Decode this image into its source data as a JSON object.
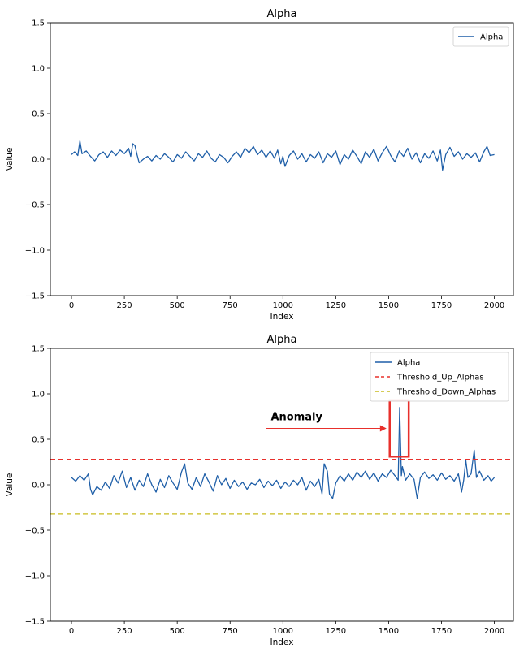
{
  "chart_data": [
    {
      "type": "line",
      "title": "Alpha",
      "xlabel": "Index",
      "ylabel": "Value",
      "xlim": [
        -100,
        2090
      ],
      "ylim": [
        -1.5,
        1.5
      ],
      "xticks": [
        0,
        250,
        500,
        750,
        1000,
        1250,
        1500,
        1750,
        2000
      ],
      "yticks": [
        -1.5,
        -1.0,
        -0.5,
        0.0,
        0.5,
        1.0,
        1.5
      ],
      "legend_position": "upper right",
      "series": [
        {
          "name": "Alpha",
          "kind": "line",
          "color": "#1f5fa8",
          "points": [
            [
              0,
              0.05
            ],
            [
              15,
              0.08
            ],
            [
              30,
              0.04
            ],
            [
              40,
              0.2
            ],
            [
              50,
              0.06
            ],
            [
              70,
              0.09
            ],
            [
              90,
              0.03
            ],
            [
              110,
              -0.02
            ],
            [
              130,
              0.05
            ],
            [
              150,
              0.08
            ],
            [
              170,
              0.02
            ],
            [
              190,
              0.09
            ],
            [
              210,
              0.04
            ],
            [
              230,
              0.1
            ],
            [
              250,
              0.06
            ],
            [
              270,
              0.12
            ],
            [
              280,
              0.03
            ],
            [
              290,
              0.17
            ],
            [
              300,
              0.15
            ],
            [
              310,
              0.05
            ],
            [
              320,
              -0.04
            ],
            [
              340,
              0.0
            ],
            [
              360,
              0.03
            ],
            [
              380,
              -0.02
            ],
            [
              400,
              0.04
            ],
            [
              420,
              0.0
            ],
            [
              440,
              0.06
            ],
            [
              460,
              0.02
            ],
            [
              480,
              -0.03
            ],
            [
              500,
              0.05
            ],
            [
              520,
              0.01
            ],
            [
              540,
              0.08
            ],
            [
              560,
              0.03
            ],
            [
              580,
              -0.02
            ],
            [
              600,
              0.06
            ],
            [
              620,
              0.02
            ],
            [
              640,
              0.09
            ],
            [
              660,
              0.01
            ],
            [
              680,
              -0.03
            ],
            [
              700,
              0.05
            ],
            [
              720,
              0.02
            ],
            [
              740,
              -0.04
            ],
            [
              760,
              0.03
            ],
            [
              780,
              0.08
            ],
            [
              800,
              0.02
            ],
            [
              820,
              0.12
            ],
            [
              840,
              0.07
            ],
            [
              860,
              0.14
            ],
            [
              880,
              0.05
            ],
            [
              900,
              0.1
            ],
            [
              920,
              0.02
            ],
            [
              940,
              0.09
            ],
            [
              960,
              0.01
            ],
            [
              975,
              0.1
            ],
            [
              990,
              -0.05
            ],
            [
              1000,
              0.03
            ],
            [
              1010,
              -0.08
            ],
            [
              1030,
              0.04
            ],
            [
              1050,
              0.09
            ],
            [
              1070,
              0.0
            ],
            [
              1090,
              0.06
            ],
            [
              1110,
              -0.03
            ],
            [
              1130,
              0.05
            ],
            [
              1150,
              0.01
            ],
            [
              1170,
              0.08
            ],
            [
              1190,
              -0.04
            ],
            [
              1210,
              0.06
            ],
            [
              1230,
              0.02
            ],
            [
              1250,
              0.09
            ],
            [
              1270,
              -0.06
            ],
            [
              1290,
              0.05
            ],
            [
              1310,
              0.0
            ],
            [
              1330,
              0.1
            ],
            [
              1350,
              0.03
            ],
            [
              1370,
              -0.05
            ],
            [
              1390,
              0.08
            ],
            [
              1410,
              0.02
            ],
            [
              1430,
              0.11
            ],
            [
              1450,
              -0.02
            ],
            [
              1470,
              0.07
            ],
            [
              1490,
              0.14
            ],
            [
              1510,
              0.04
            ],
            [
              1530,
              -0.03
            ],
            [
              1550,
              0.09
            ],
            [
              1570,
              0.03
            ],
            [
              1590,
              0.12
            ],
            [
              1610,
              0.0
            ],
            [
              1630,
              0.07
            ],
            [
              1650,
              -0.04
            ],
            [
              1670,
              0.06
            ],
            [
              1690,
              0.01
            ],
            [
              1710,
              0.09
            ],
            [
              1730,
              -0.02
            ],
            [
              1745,
              0.1
            ],
            [
              1755,
              -0.12
            ],
            [
              1770,
              0.05
            ],
            [
              1790,
              0.13
            ],
            [
              1810,
              0.03
            ],
            [
              1830,
              0.08
            ],
            [
              1850,
              0.0
            ],
            [
              1870,
              0.06
            ],
            [
              1890,
              0.02
            ],
            [
              1910,
              0.07
            ],
            [
              1930,
              -0.03
            ],
            [
              1950,
              0.08
            ],
            [
              1965,
              0.14
            ],
            [
              1980,
              0.04
            ],
            [
              2000,
              0.05
            ]
          ]
        }
      ]
    },
    {
      "type": "line",
      "title": "Alpha",
      "xlabel": "Index",
      "ylabel": "Value",
      "xlim": [
        -100,
        2090
      ],
      "ylim": [
        -1.5,
        1.5
      ],
      "xticks": [
        0,
        250,
        500,
        750,
        1000,
        1250,
        1500,
        1750,
        2000
      ],
      "yticks": [
        -1.5,
        -1.0,
        -0.5,
        0.0,
        0.5,
        1.0,
        1.5
      ],
      "legend_position": "upper right",
      "series": [
        {
          "name": "Alpha",
          "kind": "line",
          "color": "#1f5fa8",
          "points": [
            [
              0,
              0.08
            ],
            [
              20,
              0.04
            ],
            [
              40,
              0.1
            ],
            [
              60,
              0.05
            ],
            [
              80,
              0.12
            ],
            [
              90,
              -0.05
            ],
            [
              100,
              -0.11
            ],
            [
              120,
              -0.02
            ],
            [
              140,
              -0.06
            ],
            [
              160,
              0.03
            ],
            [
              180,
              -0.04
            ],
            [
              200,
              0.1
            ],
            [
              220,
              0.02
            ],
            [
              240,
              0.15
            ],
            [
              260,
              -0.03
            ],
            [
              280,
              0.08
            ],
            [
              300,
              -0.06
            ],
            [
              320,
              0.05
            ],
            [
              340,
              -0.02
            ],
            [
              360,
              0.12
            ],
            [
              380,
              0.0
            ],
            [
              400,
              -0.08
            ],
            [
              420,
              0.06
            ],
            [
              440,
              -0.03
            ],
            [
              460,
              0.1
            ],
            [
              480,
              0.02
            ],
            [
              500,
              -0.05
            ],
            [
              520,
              0.14
            ],
            [
              535,
              0.23
            ],
            [
              550,
              0.02
            ],
            [
              570,
              -0.05
            ],
            [
              590,
              0.08
            ],
            [
              610,
              -0.02
            ],
            [
              630,
              0.12
            ],
            [
              650,
              0.03
            ],
            [
              670,
              -0.07
            ],
            [
              690,
              0.1
            ],
            [
              710,
              0.0
            ],
            [
              730,
              0.07
            ],
            [
              750,
              -0.04
            ],
            [
              770,
              0.05
            ],
            [
              790,
              -0.02
            ],
            [
              810,
              0.03
            ],
            [
              830,
              -0.05
            ],
            [
              850,
              0.02
            ],
            [
              870,
              0.0
            ],
            [
              890,
              0.06
            ],
            [
              910,
              -0.03
            ],
            [
              930,
              0.04
            ],
            [
              950,
              -0.01
            ],
            [
              970,
              0.05
            ],
            [
              990,
              -0.04
            ],
            [
              1010,
              0.03
            ],
            [
              1030,
              -0.02
            ],
            [
              1050,
              0.05
            ],
            [
              1070,
              0.0
            ],
            [
              1090,
              0.08
            ],
            [
              1110,
              -0.06
            ],
            [
              1130,
              0.04
            ],
            [
              1150,
              -0.02
            ],
            [
              1170,
              0.06
            ],
            [
              1185,
              -0.1
            ],
            [
              1195,
              0.23
            ],
            [
              1210,
              0.15
            ],
            [
              1220,
              -0.1
            ],
            [
              1235,
              -0.15
            ],
            [
              1250,
              0.02
            ],
            [
              1270,
              0.1
            ],
            [
              1290,
              0.04
            ],
            [
              1310,
              0.12
            ],
            [
              1330,
              0.05
            ],
            [
              1350,
              0.14
            ],
            [
              1370,
              0.08
            ],
            [
              1390,
              0.15
            ],
            [
              1410,
              0.06
            ],
            [
              1430,
              0.13
            ],
            [
              1450,
              0.04
            ],
            [
              1470,
              0.12
            ],
            [
              1490,
              0.08
            ],
            [
              1510,
              0.16
            ],
            [
              1530,
              0.1
            ],
            [
              1545,
              0.05
            ],
            [
              1552,
              0.85
            ],
            [
              1560,
              0.1
            ],
            [
              1565,
              0.2
            ],
            [
              1580,
              0.05
            ],
            [
              1600,
              0.12
            ],
            [
              1620,
              0.06
            ],
            [
              1635,
              -0.15
            ],
            [
              1650,
              0.08
            ],
            [
              1670,
              0.14
            ],
            [
              1690,
              0.07
            ],
            [
              1710,
              0.11
            ],
            [
              1730,
              0.05
            ],
            [
              1750,
              0.13
            ],
            [
              1770,
              0.06
            ],
            [
              1790,
              0.1
            ],
            [
              1810,
              0.04
            ],
            [
              1830,
              0.12
            ],
            [
              1845,
              -0.08
            ],
            [
              1855,
              0.05
            ],
            [
              1865,
              0.27
            ],
            [
              1875,
              0.08
            ],
            [
              1890,
              0.12
            ],
            [
              1905,
              0.38
            ],
            [
              1915,
              0.08
            ],
            [
              1930,
              0.15
            ],
            [
              1950,
              0.05
            ],
            [
              1970,
              0.1
            ],
            [
              1985,
              0.04
            ],
            [
              2000,
              0.08
            ]
          ]
        },
        {
          "name": "Threshold_Up_Alphas",
          "kind": "hline",
          "y": 0.28,
          "color": "#e8302c",
          "dash": "6,4"
        },
        {
          "name": "Threshold_Down_Alphas",
          "kind": "hline",
          "y": -0.32,
          "color": "#c9bc1e",
          "dash": "6,4"
        }
      ],
      "annotations": [
        {
          "text": "Anomaly",
          "box_x": [
            1505,
            1595
          ],
          "box_y": [
            0.31,
            0.93
          ],
          "box_color": "#e8302c",
          "arrow_from": [
            920,
            0.62
          ],
          "arrow_to": [
            1490,
            0.62
          ],
          "text_at": [
            1065,
            0.71
          ]
        }
      ]
    }
  ]
}
